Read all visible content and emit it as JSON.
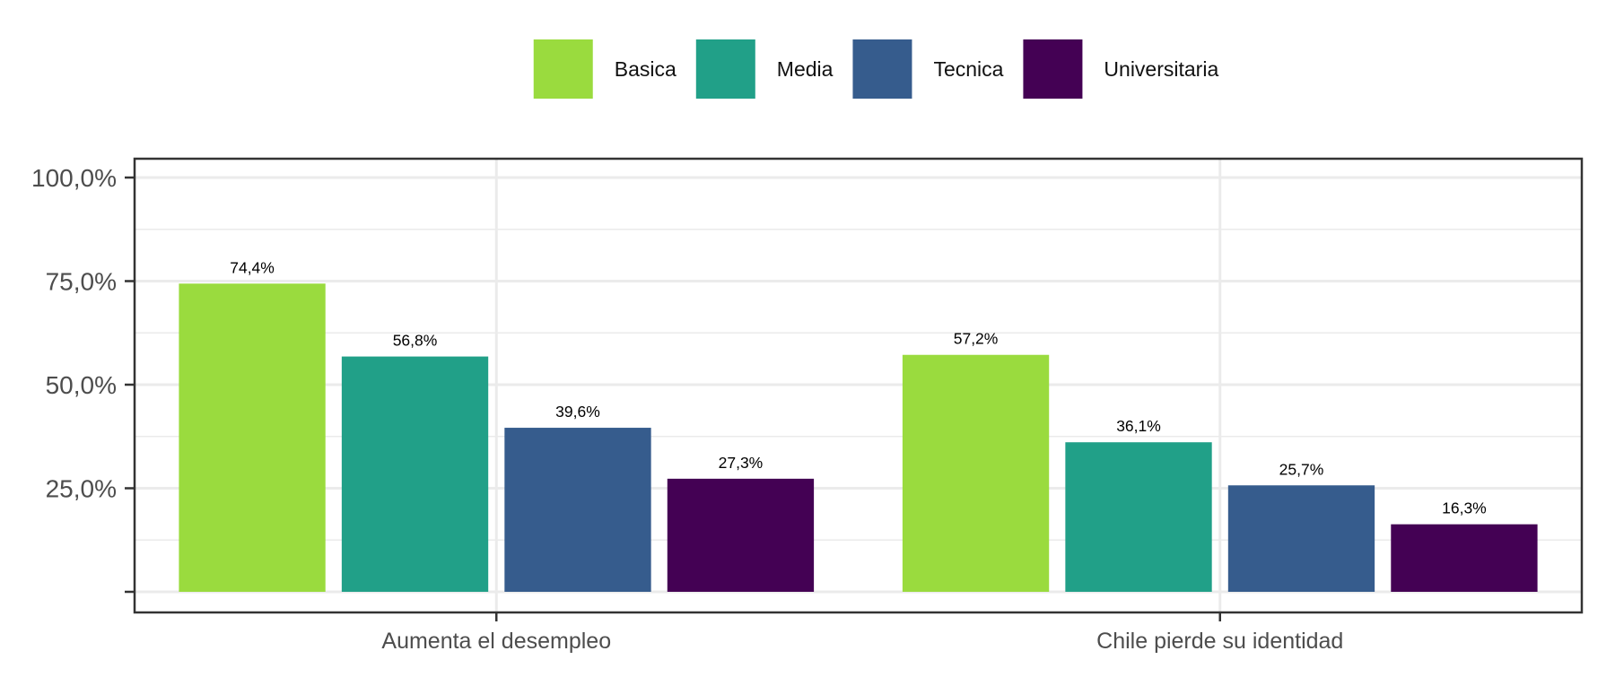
{
  "chart_data": {
    "type": "bar",
    "title": "",
    "xlabel": "",
    "ylabel": "",
    "categories": [
      "Aumenta el desempleo",
      "Chile pierde su identidad"
    ],
    "series": [
      {
        "name": "Basica",
        "color": "#9ADB3E",
        "values": [
          74.4,
          57.2
        ],
        "labels": [
          "74,4%",
          "57,2%"
        ]
      },
      {
        "name": "Media",
        "color": "#21A088",
        "values": [
          56.8,
          36.1
        ],
        "labels": [
          "56,8%",
          "36,1%"
        ]
      },
      {
        "name": "Tecnica",
        "color": "#365C8D",
        "values": [
          39.6,
          25.7
        ],
        "labels": [
          "39,6%",
          "25,7%"
        ]
      },
      {
        "name": "Universitaria",
        "color": "#440154",
        "values": [
          27.3,
          16.3
        ],
        "labels": [
          "27,3%",
          "16,3%"
        ]
      }
    ],
    "ylim": [
      0,
      104
    ],
    "yticks": [
      0,
      25,
      50,
      75,
      100
    ],
    "ytick_labels": [
      "",
      "25,0%",
      "50,0%",
      "75,0%",
      "100,0%"
    ],
    "grid": true,
    "legend_position": "top"
  }
}
